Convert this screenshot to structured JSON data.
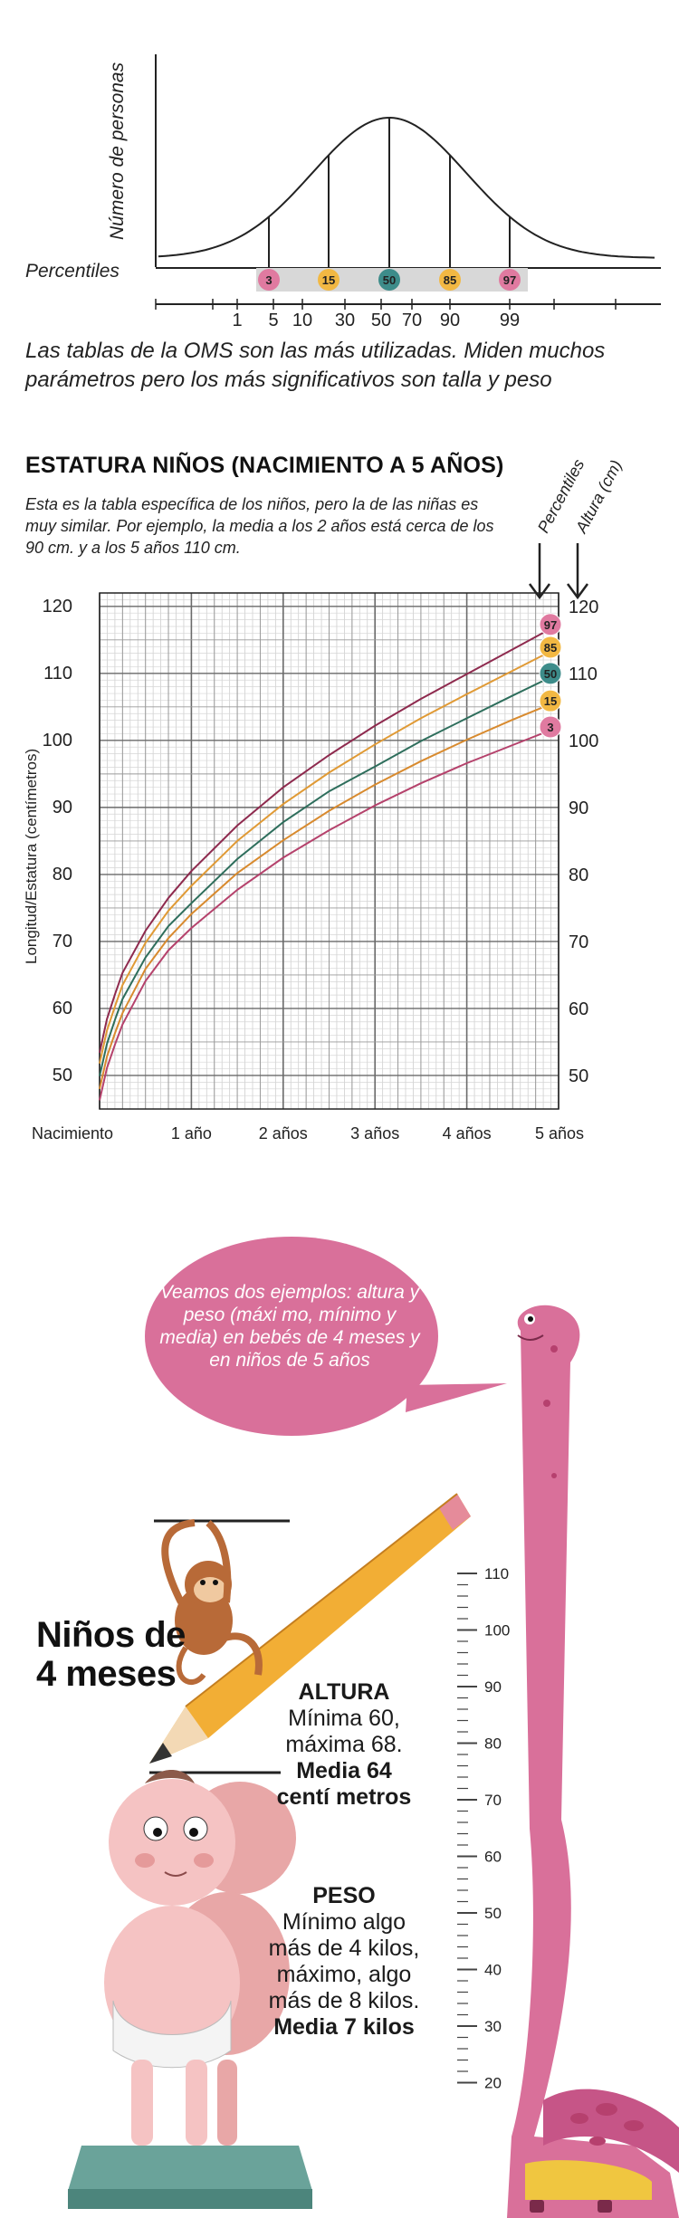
{
  "bell_chart": {
    "y_label": "Número de personas",
    "row_label": "Percentiles",
    "badges": [
      {
        "label": "3",
        "color": "#e07aa0"
      },
      {
        "label": "15",
        "color": "#f2b843"
      },
      {
        "label": "50",
        "color": "#3d8c8a"
      },
      {
        "label": "85",
        "color": "#f2b843"
      },
      {
        "label": "97",
        "color": "#e07aa0"
      }
    ],
    "axis_ticks": [
      "1",
      "5",
      "10",
      "30",
      "50",
      "70",
      "90",
      "99"
    ]
  },
  "caption": "Las tablas de la OMS son las más utilizadas. Miden muchos parámetros pero los más significativos son talla y peso",
  "growth_section": {
    "title": "ESTATURA NIÑOS (NACIMIENTO A 5 AÑOS)",
    "description": "Esta es la tabla específica de los niños, pero la de las niñas es muy similar. Por ejemplo, la media a los 2 años está cerca de los 90 cm. y a los 5 años 110 cm."
  },
  "chart_data": {
    "type": "line",
    "title": "ESTATURA NIÑOS (NACIMIENTO A 5 AÑOS)",
    "ylabel": "Longitud/Estatura (centímetros)",
    "xlabel": "",
    "x_unit": "years",
    "xlim": [
      0,
      5
    ],
    "ylim": [
      45,
      122
    ],
    "x_tick_labels": [
      {
        "x": 0,
        "label": "Nacimiento"
      },
      {
        "x": 1,
        "label": "1 año"
      },
      {
        "x": 2,
        "label": "2 años"
      },
      {
        "x": 3,
        "label": "3 años"
      },
      {
        "x": 4,
        "label": "4 años"
      },
      {
        "x": 5,
        "label": "5 años"
      }
    ],
    "y_ticks_left": [
      50,
      60,
      70,
      80,
      90,
      100,
      110,
      120
    ],
    "y_ticks_right": [
      50,
      60,
      70,
      80,
      90,
      100,
      110,
      120
    ],
    "right_header_1": "Percentiles",
    "right_header_2": "Altura (cm)",
    "grid": true,
    "x": [
      0,
      0.08,
      0.17,
      0.25,
      0.5,
      0.75,
      1,
      1.5,
      2,
      2.5,
      3,
      3.5,
      4,
      4.5,
      5
    ],
    "series": [
      {
        "name": "3",
        "color": "#b5426c",
        "values": [
          46.3,
          51.1,
          54.7,
          57.6,
          64.1,
          68.7,
          72.0,
          77.7,
          82.5,
          86.6,
          90.3,
          93.6,
          96.6,
          99.3,
          102.0
        ]
      },
      {
        "name": "15",
        "color": "#d88a2e",
        "values": [
          48.0,
          52.8,
          56.4,
          59.3,
          65.9,
          70.5,
          74.1,
          80.2,
          85.1,
          89.5,
          93.4,
          96.9,
          100.1,
          103.1,
          105.9
        ]
      },
      {
        "name": "50",
        "color": "#2e6e5c",
        "values": [
          49.9,
          54.7,
          58.4,
          61.4,
          67.6,
          72.3,
          75.7,
          82.3,
          87.8,
          92.4,
          96.1,
          99.9,
          103.3,
          106.7,
          110.0
        ]
      },
      {
        "name": "85",
        "color": "#e09a35",
        "values": [
          51.8,
          56.7,
          60.4,
          63.5,
          69.8,
          74.6,
          78.3,
          85.0,
          90.5,
          95.2,
          99.4,
          103.3,
          106.9,
          110.4,
          113.9
        ]
      },
      {
        "name": "97",
        "color": "#8e2a4e",
        "values": [
          53.4,
          58.4,
          62.2,
          65.3,
          71.6,
          76.5,
          80.5,
          87.3,
          93.0,
          97.8,
          102.2,
          106.2,
          109.9,
          113.6,
          117.3
        ]
      }
    ],
    "badge_colors": {
      "3": "#e07aa0",
      "15": "#f2b843",
      "50": "#3d8c8a",
      "85": "#f2b843",
      "97": "#e07aa0"
    }
  },
  "bubble_text": "Veamos dos ejemplos: altura y peso (máxi mo, mínimo y media) en bebés de 4 meses y en niños de 5 años",
  "ninos_title": "Niños de 4 meses",
  "altura": {
    "label": "ALTURA",
    "text": "Mínima 60, máxima 68.",
    "media": "Media 64 centí metros"
  },
  "peso": {
    "label": "PESO",
    "text": "Mínimo algo más de 4 kilos, máximo, algo más de 8 kilos.",
    "media": "Media 7 kilos"
  },
  "ruler_labels": [
    "110",
    "100",
    "90",
    "80",
    "70",
    "60",
    "50",
    "40",
    "30",
    "20"
  ],
  "illustration_colors": {
    "dino": "#d9709a",
    "dino_spots": "#b6406e",
    "dino_belly": "#f0c640",
    "pencil": "#f2ae35",
    "baby_skin": "#f5c3c3",
    "scale": "#6aa39a",
    "monkey": "#b86a38"
  }
}
